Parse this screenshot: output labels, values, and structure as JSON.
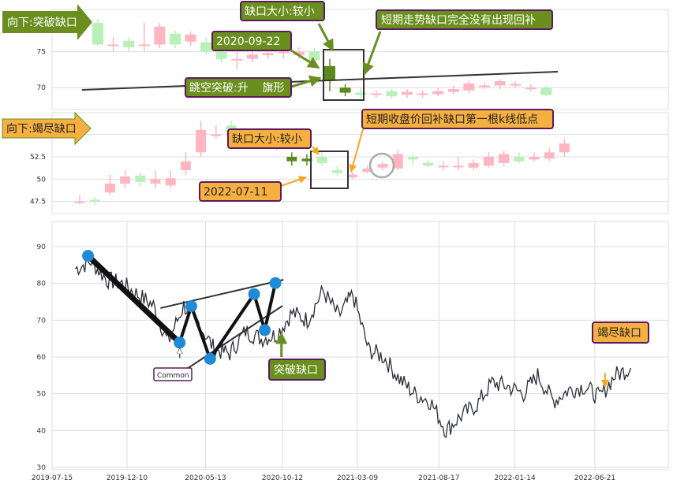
{
  "colors": {
    "up": "#ffb6c1",
    "down": "#b8f0b8",
    "gap_candle": "#5c8a1e",
    "price_line": "#2b2d3a",
    "channel": "#333333",
    "pivot": "#1f8ad6",
    "green_note_bg": "#6a8f1f",
    "orange_note_bg": "#f5b041",
    "note_border": "#5b1a5e",
    "arrow_green": "#6b8e23",
    "arrow_orange": "#f5a623",
    "grid": "#dddddd"
  },
  "annotations": {
    "panel1_banner": "向下:突破缺口",
    "panel1_gap_size": "缺口大小:较小",
    "panel1_short_term": "短期走势缺口完全没有出现回补",
    "panel1_date": "2020-09-22",
    "panel1_pattern": "跳空突破:升    旗形",
    "panel2_banner": "向下:竭尽缺口",
    "panel2_gap_size": "缺口大小:较小",
    "panel2_short_term": "短期收盘价回补缺口第一根k线低点",
    "panel2_date": "2022-07-11",
    "panel3_common": "Common",
    "panel3_breakout": "突破缺口",
    "panel3_exhaustion": "竭尽缺口"
  },
  "chart_data": [
    {
      "type": "candlestick",
      "panel": "breakaway-gap-zoom",
      "yticks": [
        70,
        75
      ],
      "ylim": [
        67.5,
        80
      ],
      "candles": [
        {
          "o": 79,
          "c": 76,
          "h": 79.5,
          "l": 75.8
        },
        {
          "o": 76,
          "c": 76,
          "h": 77,
          "l": 75
        },
        {
          "o": 76.5,
          "c": 75.6,
          "h": 77,
          "l": 75
        },
        {
          "o": 76,
          "c": 76,
          "h": 79,
          "l": 75
        },
        {
          "o": 76,
          "c": 78.5,
          "h": 79,
          "l": 75.5
        },
        {
          "o": 77.5,
          "c": 76,
          "h": 78,
          "l": 75.5
        },
        {
          "o": 76.4,
          "c": 77.4,
          "h": 77.8,
          "l": 75.8
        },
        {
          "o": 76.3,
          "c": 75,
          "h": 77,
          "l": 74.5
        },
        {
          "o": 75,
          "c": 74,
          "h": 75.8,
          "l": 73.5
        },
        {
          "o": 74,
          "c": 74,
          "h": 75.5,
          "l": 72.5
        },
        {
          "o": 74,
          "c": 74.6,
          "h": 75.5,
          "l": 73.5
        },
        {
          "o": 74.5,
          "c": 74.8,
          "h": 75.6,
          "l": 74
        },
        {
          "o": 75,
          "c": 75,
          "h": 75.8,
          "l": 74
        },
        {
          "o": 74.5,
          "c": 75,
          "h": 75.6,
          "l": 74
        },
        {
          "o": 75,
          "c": 73.8,
          "h": 75.5,
          "l": 73.5
        },
        {
          "o": 73,
          "c": 71,
          "h": 74,
          "l": 69.5
        },
        {
          "o": 70,
          "c": 69.3,
          "h": 70.5,
          "l": 68.8
        },
        {
          "o": 69.3,
          "c": 69,
          "h": 70,
          "l": 68.5
        },
        {
          "o": 69.2,
          "c": 69.2,
          "h": 69.6,
          "l": 68.6
        },
        {
          "o": 69.5,
          "c": 68.8,
          "h": 69.8,
          "l": 68.5
        },
        {
          "o": 69,
          "c": 69.4,
          "h": 69.8,
          "l": 68.6
        },
        {
          "o": 69.2,
          "c": 69.2,
          "h": 69.6,
          "l": 68.6
        },
        {
          "o": 69.1,
          "c": 69.5,
          "h": 70,
          "l": 68.8
        },
        {
          "o": 69.4,
          "c": 69.8,
          "h": 70.3,
          "l": 69
        },
        {
          "o": 69.6,
          "c": 70.6,
          "h": 71,
          "l": 69.2
        },
        {
          "o": 70.3,
          "c": 70.3,
          "h": 70.7,
          "l": 69.8
        },
        {
          "o": 70.3,
          "c": 70.9,
          "h": 71.2,
          "l": 69.8
        },
        {
          "o": 70.5,
          "c": 70.5,
          "h": 70.8,
          "l": 70
        },
        {
          "o": 70,
          "c": 70,
          "h": 70.5,
          "l": 69.5
        },
        {
          "o": 70,
          "c": 69,
          "h": 70.3,
          "l": 68.8
        }
      ],
      "gap_candle_indexes": [
        15,
        16
      ]
    },
    {
      "type": "candlestick",
      "panel": "exhaustion-gap-zoom",
      "yticks": [
        47.5,
        50.0,
        52.5,
        55.0
      ],
      "ylim": [
        46.5,
        57
      ],
      "candles": [
        {
          "o": 47.5,
          "c": 47.5,
          "h": 48.2,
          "l": 47.2
        },
        {
          "o": 47.7,
          "c": 47.5,
          "h": 48,
          "l": 47.1
        },
        {
          "o": 48.5,
          "c": 49.5,
          "h": 50.5,
          "l": 48.2
        },
        {
          "o": 49.5,
          "c": 50.3,
          "h": 51,
          "l": 49
        },
        {
          "o": 50.4,
          "c": 49.7,
          "h": 50.8,
          "l": 49.2
        },
        {
          "o": 49.5,
          "c": 50,
          "h": 51,
          "l": 49
        },
        {
          "o": 49.3,
          "c": 50.1,
          "h": 51,
          "l": 49
        },
        {
          "o": 51,
          "c": 52,
          "h": 53,
          "l": 50.5
        },
        {
          "o": 53,
          "c": 55.5,
          "h": 56.5,
          "l": 52.5
        },
        {
          "o": 55,
          "c": 55,
          "h": 56,
          "l": 54.5
        },
        {
          "o": 56,
          "c": 55,
          "h": 56.5,
          "l": 54.5
        },
        {
          "o": 55,
          "c": 54,
          "h": 55.5,
          "l": 53.5
        },
        {
          "o": 54.3,
          "c": 54,
          "h": 54.6,
          "l": 53.5
        },
        {
          "o": 53.8,
          "c": 53.6,
          "h": 54.3,
          "l": 53.2
        },
        {
          "o": 52.5,
          "c": 52,
          "h": 53,
          "l": 51.5
        },
        {
          "o": 52,
          "c": 52.3,
          "h": 52.8,
          "l": 51.5
        },
        {
          "o": 52.5,
          "c": 51.8,
          "h": 53,
          "l": 51.5
        },
        {
          "o": 51,
          "c": 50.7,
          "h": 51.5,
          "l": 50.4
        },
        {
          "o": 50.2,
          "c": 50.5,
          "h": 50.8,
          "l": 50
        },
        {
          "o": 50.8,
          "c": 51.2,
          "h": 51.5,
          "l": 50.6
        },
        {
          "o": 51.3,
          "c": 51.7,
          "h": 52,
          "l": 51
        },
        {
          "o": 51.2,
          "c": 52.8,
          "h": 53.3,
          "l": 51
        },
        {
          "o": 52.5,
          "c": 52.2,
          "h": 52.8,
          "l": 51.6
        },
        {
          "o": 51.8,
          "c": 51.5,
          "h": 52.2,
          "l": 51.3
        },
        {
          "o": 51.5,
          "c": 51.5,
          "h": 52,
          "l": 51
        },
        {
          "o": 51.5,
          "c": 51.5,
          "h": 52.5,
          "l": 51
        },
        {
          "o": 51.3,
          "c": 51.8,
          "h": 52.2,
          "l": 51
        },
        {
          "o": 51.5,
          "c": 52.5,
          "h": 53,
          "l": 51.3
        },
        {
          "o": 51.8,
          "c": 52.8,
          "h": 53.2,
          "l": 51.5
        },
        {
          "o": 52.5,
          "c": 52,
          "h": 53,
          "l": 51.8
        },
        {
          "o": 52.2,
          "c": 52.5,
          "h": 53,
          "l": 52
        },
        {
          "o": 52.3,
          "c": 53,
          "h": 53.5,
          "l": 52
        },
        {
          "o": 53,
          "c": 54,
          "h": 54.5,
          "l": 52.5
        }
      ],
      "gap_candle_indexes": [
        14,
        15
      ]
    },
    {
      "type": "line",
      "panel": "full-price-history",
      "x_ticks": [
        "2019-07-15",
        "2019-12-10",
        "2020-05-13",
        "2020-10-12",
        "2021-03-09",
        "2021-08-17",
        "2022-01-14",
        "2022-06-21"
      ],
      "yticks": [
        30,
        40,
        50,
        60,
        70,
        80,
        90
      ],
      "ylim": [
        30,
        96
      ],
      "x": [
        "2019-08-30",
        "2019-09-30",
        "2019-10-31",
        "2019-11-30",
        "2019-12-31",
        "2020-01-31",
        "2020-02-29",
        "2020-03-31",
        "2020-04-30",
        "2020-05-31",
        "2020-06-30",
        "2020-07-31",
        "2020-08-31",
        "2020-09-30",
        "2020-10-31",
        "2020-11-30",
        "2020-12-31",
        "2021-01-31",
        "2021-02-28",
        "2021-03-31",
        "2021-04-30",
        "2021-05-31",
        "2021-06-30",
        "2021-07-31",
        "2021-08-31",
        "2021-09-30",
        "2021-10-31",
        "2021-11-30",
        "2021-12-31",
        "2022-01-31",
        "2022-02-28",
        "2022-03-31",
        "2022-04-30",
        "2022-05-31",
        "2022-06-30",
        "2022-07-31",
        "2022-08-31"
      ],
      "y": [
        84,
        86,
        81,
        80,
        77,
        74,
        64,
        74,
        69,
        62,
        61,
        67,
        65,
        66,
        72,
        70,
        78,
        71,
        77,
        62,
        60,
        54,
        50,
        48,
        40,
        44,
        47,
        53,
        52,
        50,
        55,
        48,
        51,
        52,
        49,
        55,
        57
      ],
      "pivots": [
        {
          "x": "2019-09-24",
          "y": 87.5
        },
        {
          "x": "2020-03-23",
          "y": 63.9
        },
        {
          "x": "2020-04-15",
          "y": 73.8
        },
        {
          "x": "2020-05-22",
          "y": 59.5
        },
        {
          "x": "2020-08-17",
          "y": 77.1
        },
        {
          "x": "2020-09-07",
          "y": 67.3
        },
        {
          "x": "2020-09-28",
          "y": 80.1
        }
      ],
      "channel_upper": [
        {
          "x": "2020-02-14",
          "y": 73.3
        },
        {
          "x": "2020-10-14",
          "y": 81
        }
      ],
      "channel_lower": [
        {
          "x": "2020-04-01",
          "y": 56.3
        },
        {
          "x": "2020-10-12",
          "y": 73.9
        }
      ],
      "markers": [
        {
          "label": "Common",
          "x": "2020-03-23",
          "y": 61
        },
        {
          "label": "突破缺口",
          "x": "2020-10-10",
          "y": 60
        },
        {
          "label": "竭尽缺口",
          "x": "2022-07-11",
          "y": 51
        }
      ]
    }
  ]
}
